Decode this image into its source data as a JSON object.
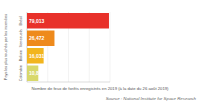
{
  "chart_data": {
    "type": "bar",
    "orientation": "horizontal",
    "y_label": "Pays les plus touchés par les incendies",
    "x_label": "Nombre de feux de forêts enregistrés en 2019 (à la date du 26 août 2019)",
    "source": "Source : National Institute for Space Research",
    "categories": [
      "Brésil",
      "Venezuela",
      "Bolivie",
      "Colombie"
    ],
    "values": [
      79013,
      26472,
      16031,
      10887
    ],
    "value_labels": [
      "79,013",
      "26,472",
      "16,031",
      "10,887"
    ],
    "colors": [
      "#e8312a",
      "#ee8a1c",
      "#f2b51e",
      "#d8d86a"
    ],
    "xlim": [
      0,
      80000
    ],
    "xticks": [
      0,
      20000,
      40000,
      60000,
      80000
    ],
    "tick_labels": false,
    "grid": true,
    "data_labels": true
  }
}
